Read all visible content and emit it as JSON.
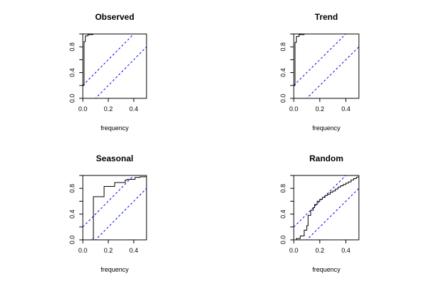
{
  "chart_data": [
    {
      "type": "line",
      "title": "Observed",
      "xlabel": "frequency",
      "ylabel": "",
      "xlim": [
        0,
        0.5
      ],
      "ylim": [
        0,
        1
      ],
      "xticks": [
        "0.0",
        "0.2",
        "0.4"
      ],
      "yticks": [
        "0.0",
        "0.4",
        "0.8"
      ],
      "series": [
        {
          "values": [
            [
              0,
              0
            ],
            [
              0,
              0.2
            ],
            [
              0.01,
              0.2
            ],
            [
              0.01,
              0.88
            ],
            [
              0.02,
              0.88
            ],
            [
              0.02,
              0.97
            ],
            [
              0.04,
              0.97
            ],
            [
              0.04,
              0.99
            ],
            [
              0.08,
              0.99
            ],
            [
              0.08,
              1
            ],
            [
              0.5,
              1
            ]
          ]
        }
      ],
      "bands": {
        "offset": 0.2,
        "slope": 2
      }
    },
    {
      "type": "line",
      "title": "Trend",
      "xlabel": "frequency",
      "ylabel": "",
      "xlim": [
        0,
        0.5
      ],
      "ylim": [
        0,
        1
      ],
      "xticks": [
        "0.0",
        "0.2",
        "0.4"
      ],
      "yticks": [
        "0.0",
        "0.4",
        "0.8"
      ],
      "series": [
        {
          "values": [
            [
              0,
              0
            ],
            [
              0,
              0.2
            ],
            [
              0.01,
              0.2
            ],
            [
              0.01,
              0.87
            ],
            [
              0.02,
              0.87
            ],
            [
              0.02,
              0.96
            ],
            [
              0.04,
              0.96
            ],
            [
              0.04,
              0.99
            ],
            [
              0.08,
              0.99
            ],
            [
              0.08,
              1
            ],
            [
              0.5,
              1
            ]
          ]
        }
      ],
      "bands": {
        "offset": 0.2,
        "slope": 2
      }
    },
    {
      "type": "line",
      "title": "Seasonal",
      "xlabel": "frequency",
      "ylabel": "",
      "xlim": [
        0,
        0.5
      ],
      "ylim": [
        0,
        1
      ],
      "xticks": [
        "0.0",
        "0.2",
        "0.4"
      ],
      "yticks": [
        "0.0",
        "0.4",
        "0.8"
      ],
      "series": [
        {
          "values": [
            [
              0,
              0
            ],
            [
              0.08,
              0
            ],
            [
              0.08,
              0.02
            ],
            [
              0.083,
              0.02
            ],
            [
              0.083,
              0.67
            ],
            [
              0.167,
              0.67
            ],
            [
              0.167,
              0.83
            ],
            [
              0.25,
              0.83
            ],
            [
              0.25,
              0.89
            ],
            [
              0.333,
              0.89
            ],
            [
              0.333,
              0.93
            ],
            [
              0.35,
              0.93
            ],
            [
              0.35,
              0.94
            ],
            [
              0.41,
              0.94
            ],
            [
              0.41,
              0.97
            ],
            [
              0.45,
              0.97
            ],
            [
              0.45,
              0.98
            ],
            [
              0.5,
              0.98
            ]
          ]
        }
      ],
      "bands": {
        "offset": 0.2,
        "slope": 2
      }
    },
    {
      "type": "line",
      "title": "Random",
      "xlabel": "frequency",
      "ylabel": "",
      "xlim": [
        0,
        0.5
      ],
      "ylim": [
        0,
        1
      ],
      "xticks": [
        "0.0",
        "0.2",
        "0.4"
      ],
      "yticks": [
        "0.0",
        "0.4",
        "0.8"
      ],
      "series": [
        {
          "values": [
            [
              0,
              0
            ],
            [
              0.02,
              0
            ],
            [
              0.02,
              0.02
            ],
            [
              0.05,
              0.02
            ],
            [
              0.05,
              0.06
            ],
            [
              0.08,
              0.06
            ],
            [
              0.08,
              0.15
            ],
            [
              0.1,
              0.15
            ],
            [
              0.1,
              0.22
            ],
            [
              0.11,
              0.22
            ],
            [
              0.11,
              0.38
            ],
            [
              0.13,
              0.38
            ],
            [
              0.13,
              0.46
            ],
            [
              0.15,
              0.46
            ],
            [
              0.15,
              0.5
            ],
            [
              0.16,
              0.5
            ],
            [
              0.16,
              0.55
            ],
            [
              0.18,
              0.55
            ],
            [
              0.18,
              0.6
            ],
            [
              0.2,
              0.6
            ],
            [
              0.2,
              0.63
            ],
            [
              0.22,
              0.63
            ],
            [
              0.22,
              0.66
            ],
            [
              0.24,
              0.66
            ],
            [
              0.24,
              0.69
            ],
            [
              0.26,
              0.69
            ],
            [
              0.26,
              0.71
            ],
            [
              0.28,
              0.71
            ],
            [
              0.28,
              0.74
            ],
            [
              0.3,
              0.74
            ],
            [
              0.3,
              0.76
            ],
            [
              0.32,
              0.76
            ],
            [
              0.32,
              0.79
            ],
            [
              0.34,
              0.79
            ],
            [
              0.34,
              0.82
            ],
            [
              0.36,
              0.82
            ],
            [
              0.36,
              0.84
            ],
            [
              0.38,
              0.84
            ],
            [
              0.38,
              0.86
            ],
            [
              0.4,
              0.86
            ],
            [
              0.4,
              0.88
            ],
            [
              0.42,
              0.88
            ],
            [
              0.42,
              0.9
            ],
            [
              0.44,
              0.9
            ],
            [
              0.44,
              0.93
            ],
            [
              0.46,
              0.93
            ],
            [
              0.46,
              0.95
            ],
            [
              0.48,
              0.95
            ],
            [
              0.48,
              0.97
            ],
            [
              0.5,
              0.98
            ]
          ]
        }
      ],
      "bands": {
        "offset": 0.2,
        "slope": 2
      }
    }
  ],
  "colors": {
    "series_line": "#000000",
    "band_line": "#0000ee",
    "axis": "#000000"
  }
}
